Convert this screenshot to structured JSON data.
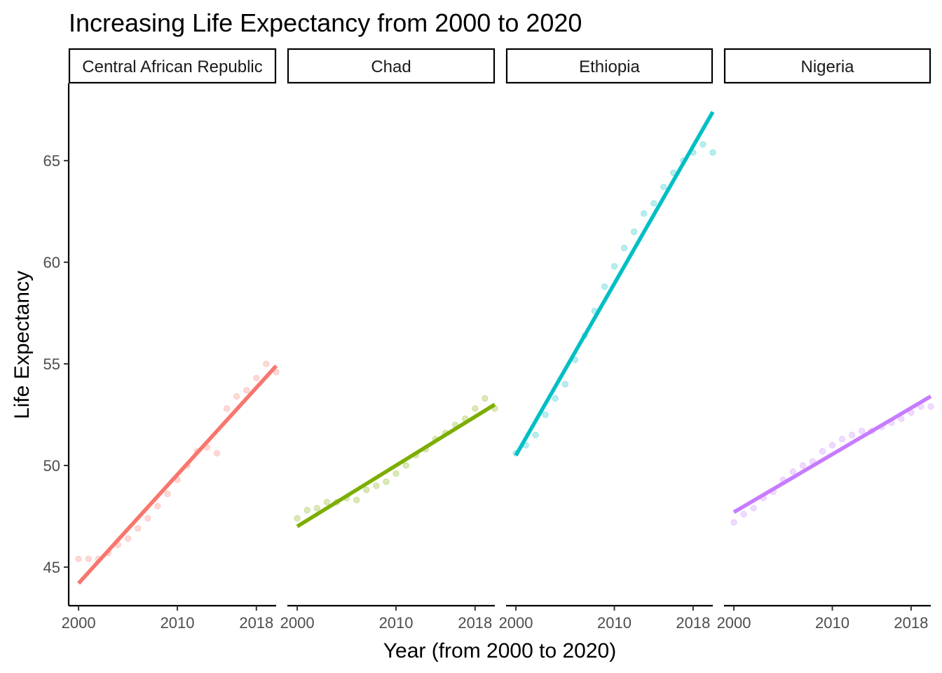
{
  "chart_data": {
    "type": "scatter",
    "title": "Increasing Life Expectancy from 2000 to 2020",
    "xlabel": "Year (from 2000 to 2020)",
    "ylabel": "Life Expectancy",
    "xlim": [
      1999.0,
      2020.0
    ],
    "ylim": [
      43.1,
      68.8
    ],
    "x_ticks": [
      2000,
      2010,
      2018
    ],
    "y_ticks": [
      45,
      50,
      55,
      60,
      65
    ],
    "grid": false,
    "legend": "none",
    "facets": [
      {
        "name": "Central African Republic",
        "color": "#F8766D",
        "x": [
          2000,
          2001,
          2002,
          2003,
          2004,
          2005,
          2006,
          2007,
          2008,
          2009,
          2010,
          2011,
          2012,
          2013,
          2014,
          2015,
          2016,
          2017,
          2018,
          2019,
          2020
        ],
        "y": [
          45.4,
          45.4,
          45.4,
          45.7,
          46.1,
          46.4,
          46.9,
          47.4,
          48.0,
          48.6,
          49.3,
          50.0,
          50.7,
          50.9,
          50.6,
          52.8,
          53.4,
          53.7,
          54.3,
          55.0,
          54.6
        ],
        "trend": {
          "x": [
            2000,
            2020
          ],
          "y": [
            44.2,
            54.9
          ]
        }
      },
      {
        "name": "Chad",
        "color": "#7CAE00",
        "x": [
          2000,
          2001,
          2002,
          2003,
          2004,
          2005,
          2006,
          2007,
          2008,
          2009,
          2010,
          2011,
          2012,
          2013,
          2014,
          2015,
          2016,
          2017,
          2018,
          2019,
          2020
        ],
        "y": [
          47.4,
          47.8,
          47.9,
          48.2,
          48.2,
          48.4,
          48.3,
          48.8,
          49.0,
          49.2,
          49.6,
          50.0,
          50.5,
          50.8,
          51.3,
          51.6,
          52.0,
          52.3,
          52.8,
          53.3,
          52.8
        ],
        "trend": {
          "x": [
            2000,
            2020
          ],
          "y": [
            47.0,
            53.0
          ]
        }
      },
      {
        "name": "Ethiopia",
        "color": "#00BFC4",
        "x": [
          2000,
          2001,
          2002,
          2003,
          2004,
          2005,
          2006,
          2007,
          2008,
          2009,
          2010,
          2011,
          2012,
          2013,
          2014,
          2015,
          2016,
          2017,
          2018,
          2019,
          2020
        ],
        "y": [
          50.6,
          51.0,
          51.5,
          52.5,
          53.3,
          54.0,
          55.2,
          56.4,
          57.6,
          58.8,
          59.8,
          60.7,
          61.5,
          62.4,
          62.9,
          63.7,
          64.4,
          65.0,
          65.4,
          65.8,
          65.4
        ],
        "trend": {
          "x": [
            2000,
            2020
          ],
          "y": [
            50.5,
            67.4
          ]
        }
      },
      {
        "name": "Nigeria",
        "color": "#C77CFF",
        "x": [
          2000,
          2001,
          2002,
          2003,
          2004,
          2005,
          2006,
          2007,
          2008,
          2009,
          2010,
          2011,
          2012,
          2013,
          2014,
          2015,
          2016,
          2017,
          2018,
          2019,
          2020
        ],
        "y": [
          47.2,
          47.6,
          47.9,
          48.4,
          48.7,
          49.3,
          49.7,
          50.0,
          50.2,
          50.7,
          51.0,
          51.3,
          51.5,
          51.7,
          51.7,
          51.9,
          52.1,
          52.3,
          52.6,
          52.9,
          52.9
        ],
        "trend": {
          "x": [
            2000,
            2020
          ],
          "y": [
            47.7,
            53.4
          ]
        }
      }
    ]
  }
}
